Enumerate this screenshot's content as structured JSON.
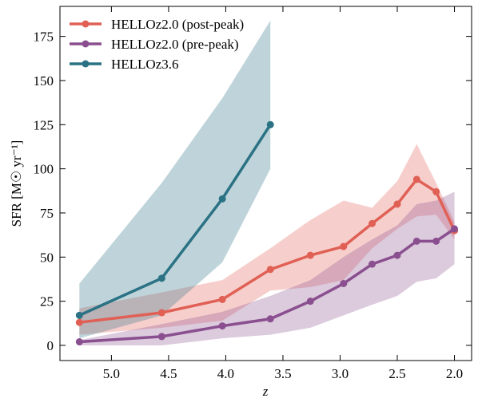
{
  "chart_data": {
    "type": "line",
    "xlabel": "z",
    "ylabel": "SFR [M☉ yr⁻¹]",
    "xlim": [
      5.45,
      1.85
    ],
    "ylim": [
      -8.6,
      192
    ],
    "xticks": [
      {
        "value": 5,
        "label": "5.0"
      },
      4.5,
      {
        "value": 4,
        "label": "4.0"
      },
      3.5,
      {
        "value": 3,
        "label": "3.0"
      },
      2.5,
      {
        "value": 2,
        "label": "2.0"
      }
    ],
    "yticks": [
      0,
      25,
      50,
      75,
      100,
      125,
      150,
      175
    ],
    "legend": "upper-left",
    "series": [
      {
        "name": "HELLOz2.0 (post-peak)",
        "color": "#e06055",
        "x": [
          5.28,
          4.56,
          4.03,
          3.61,
          3.26,
          2.97,
          2.72,
          2.5,
          2.33,
          2.16,
          2.0
        ],
        "values": [
          13,
          18.5,
          26,
          43,
          51,
          56,
          69,
          80,
          94,
          87,
          65
        ],
        "upper": [
          21,
          30,
          37,
          55,
          71,
          82,
          78,
          93,
          114,
          92,
          70
        ],
        "lower": [
          6,
          10,
          14,
          31,
          33,
          37,
          55,
          66,
          73,
          74,
          60
        ]
      },
      {
        "name": "HELLOz2.0 (pre-peak)",
        "color": "#8a4f8f",
        "x": [
          5.28,
          4.56,
          4.03,
          3.61,
          3.26,
          2.97,
          2.72,
          2.5,
          2.33,
          2.16,
          2.0
        ],
        "values": [
          2,
          5,
          11,
          15,
          25,
          35,
          46,
          51,
          59,
          59,
          66
        ],
        "upper": [
          3,
          12,
          19,
          28,
          37,
          50,
          60,
          68,
          80,
          82,
          87
        ],
        "lower": [
          0,
          0,
          4,
          6,
          10,
          17,
          23,
          28,
          36,
          38,
          46
        ]
      },
      {
        "name": "HELLOz3.6",
        "color": "#2a7284",
        "x": [
          5.28,
          4.56,
          4.03,
          3.61
        ],
        "values": [
          17,
          38,
          83,
          125
        ],
        "upper": [
          35,
          92,
          140,
          184
        ],
        "lower": [
          4,
          17,
          47,
          100
        ]
      }
    ]
  }
}
